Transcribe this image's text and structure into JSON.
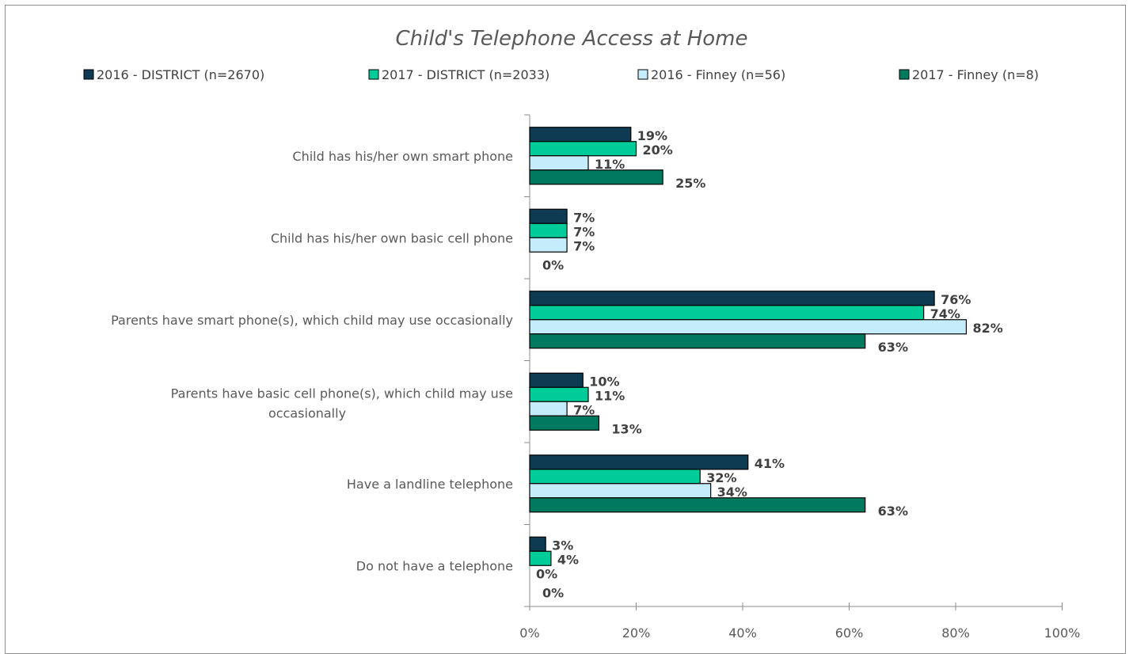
{
  "chart_data": {
    "type": "bar",
    "orientation": "horizontal",
    "title": "Child's Telephone Access at Home",
    "categories": [
      "Child has his/her own smart phone",
      "Child has his/her own basic cell phone",
      "Parents have smart phone(s), which child may use occasionally",
      "Parents have basic cell phone(s), which child may use occasionally",
      "Have a landline telephone",
      "Do not have a telephone"
    ],
    "series": [
      {
        "name": "2016 - DISTRICT (n=2670)",
        "color": "#0e3a52",
        "values": [
          19,
          7,
          76,
          10,
          41,
          3
        ]
      },
      {
        "name": "2017 - DISTRICT (n=2033)",
        "color": "#00cc99",
        "values": [
          20,
          7,
          74,
          11,
          32,
          4
        ]
      },
      {
        "name": "2016 - Finney (n=56)",
        "color": "#c5ecfb",
        "values": [
          11,
          7,
          82,
          7,
          34,
          0
        ]
      },
      {
        "name": "2017 - Finney (n=8)",
        "color": "#007a5e",
        "values": [
          25,
          0,
          63,
          13,
          63,
          0
        ]
      }
    ],
    "data_labels": [
      [
        "19%",
        "7%",
        "76%",
        "10%",
        "41%",
        "3%"
      ],
      [
        "20%",
        "7%",
        "74%",
        "11%",
        "32%",
        "4%"
      ],
      [
        "11%",
        "7%",
        "82%",
        "7%",
        "34%",
        "0%"
      ],
      [
        "25%",
        "0%",
        "63%",
        "13%",
        "63%",
        "0%"
      ]
    ],
    "xlim": [
      0,
      100
    ],
    "xticks": [
      "0%",
      "20%",
      "40%",
      "60%",
      "80%",
      "100%"
    ],
    "legend_position": "top",
    "grid": false
  }
}
